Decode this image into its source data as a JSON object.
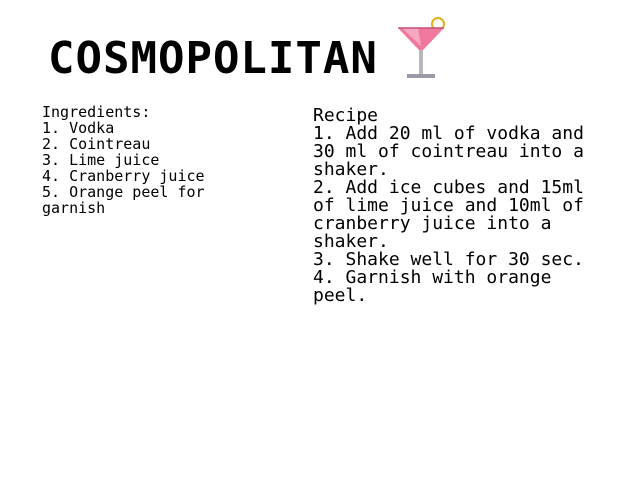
{
  "title": "COSMOPOLITAN",
  "icon": {
    "name": "cocktail-glass-icon",
    "liquid_color": "#f0789c",
    "garnish_color": "#e0b020",
    "glass_color": "#b8b8c0"
  },
  "ingredients": {
    "heading": "Ingredients:",
    "items": [
      "1. Vodka",
      "2. Cointreau",
      "3. Lime juice",
      "4. Cranberry juice",
      "5. Orange peel for garnish"
    ]
  },
  "recipe": {
    "heading": "Recipe",
    "steps": [
      "1. Add 20 ml of vodka and 30 ml of cointreau into a shaker.",
      "2. Add ice cubes and 15ml of lime juice and 10ml of cranberry juice into a shaker.",
      "3. Shake well for 30 sec.",
      "4. Garnish with orange peel."
    ]
  }
}
